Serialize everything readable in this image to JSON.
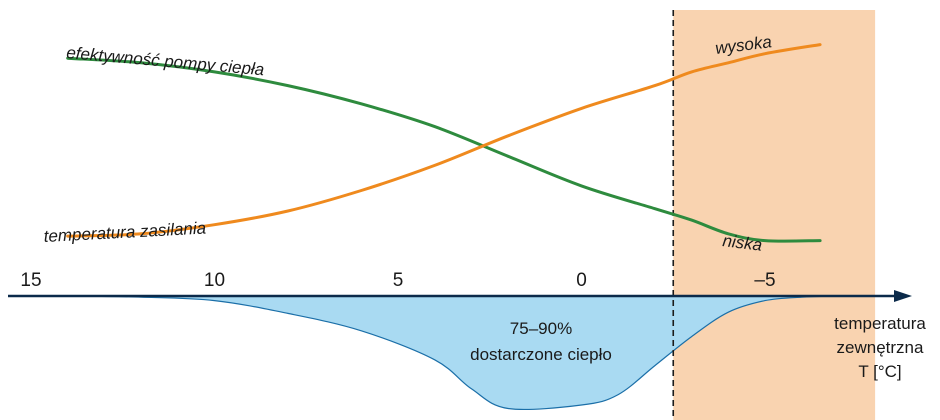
{
  "chart_data": {
    "type": "line",
    "title": "",
    "x_axis": {
      "label_lines": [
        "temperatura",
        "zewnętrzna",
        "T [°C]"
      ],
      "ticks": [
        15,
        10,
        5,
        0,
        -5
      ],
      "tick_labels": [
        "15",
        "10",
        "5",
        "0",
        "–5"
      ],
      "range": [
        15.5,
        -8.5
      ],
      "direction": "decreasing to the right"
    },
    "y_axis": {
      "visible": false
    },
    "series": [
      {
        "name": "efektywność pompy ciepła",
        "color": "#2e8b3e",
        "x": [
          14,
          12,
          10,
          8,
          6,
          4,
          2,
          0,
          -2,
          -3,
          -4,
          -5,
          -6.5
        ],
        "y": [
          0.92,
          0.9,
          0.86,
          0.8,
          0.72,
          0.62,
          0.49,
          0.36,
          0.26,
          0.21,
          0.15,
          0.12,
          0.12
        ]
      },
      {
        "name": "temperatura zasilania",
        "color": "#ef8a1e",
        "x": [
          14,
          12,
          10,
          8,
          6,
          4,
          2,
          0,
          -2,
          -3,
          -4,
          -5,
          -6.5
        ],
        "y": [
          0.14,
          0.15,
          0.19,
          0.25,
          0.34,
          0.45,
          0.58,
          0.7,
          0.8,
          0.86,
          0.9,
          0.94,
          0.98
        ]
      }
    ],
    "annotations": {
      "high": "wysoka",
      "low": "niska"
    },
    "shaded_region": {
      "x_from": -2.5,
      "x_to": -8.0,
      "color": "#f9d3b0",
      "boundary_line": "dashed"
    },
    "heat_area": {
      "label_lines": [
        "75–90%",
        "dostarczone ciepło"
      ],
      "color": "#a9daf2",
      "x": [
        14,
        12,
        10,
        8,
        6,
        4,
        3,
        2,
        0,
        -1,
        -2,
        -3,
        -4,
        -5,
        -6,
        -7
      ],
      "depth": [
        0.0,
        0.01,
        0.04,
        0.15,
        0.3,
        0.55,
        0.8,
        0.97,
        0.94,
        0.85,
        0.6,
        0.35,
        0.14,
        0.04,
        0.01,
        0.0
      ]
    },
    "colors": {
      "axis": "#0b2a4a",
      "heat_area": "#a9daf2",
      "shaded_region": "#f9d3b0"
    }
  }
}
